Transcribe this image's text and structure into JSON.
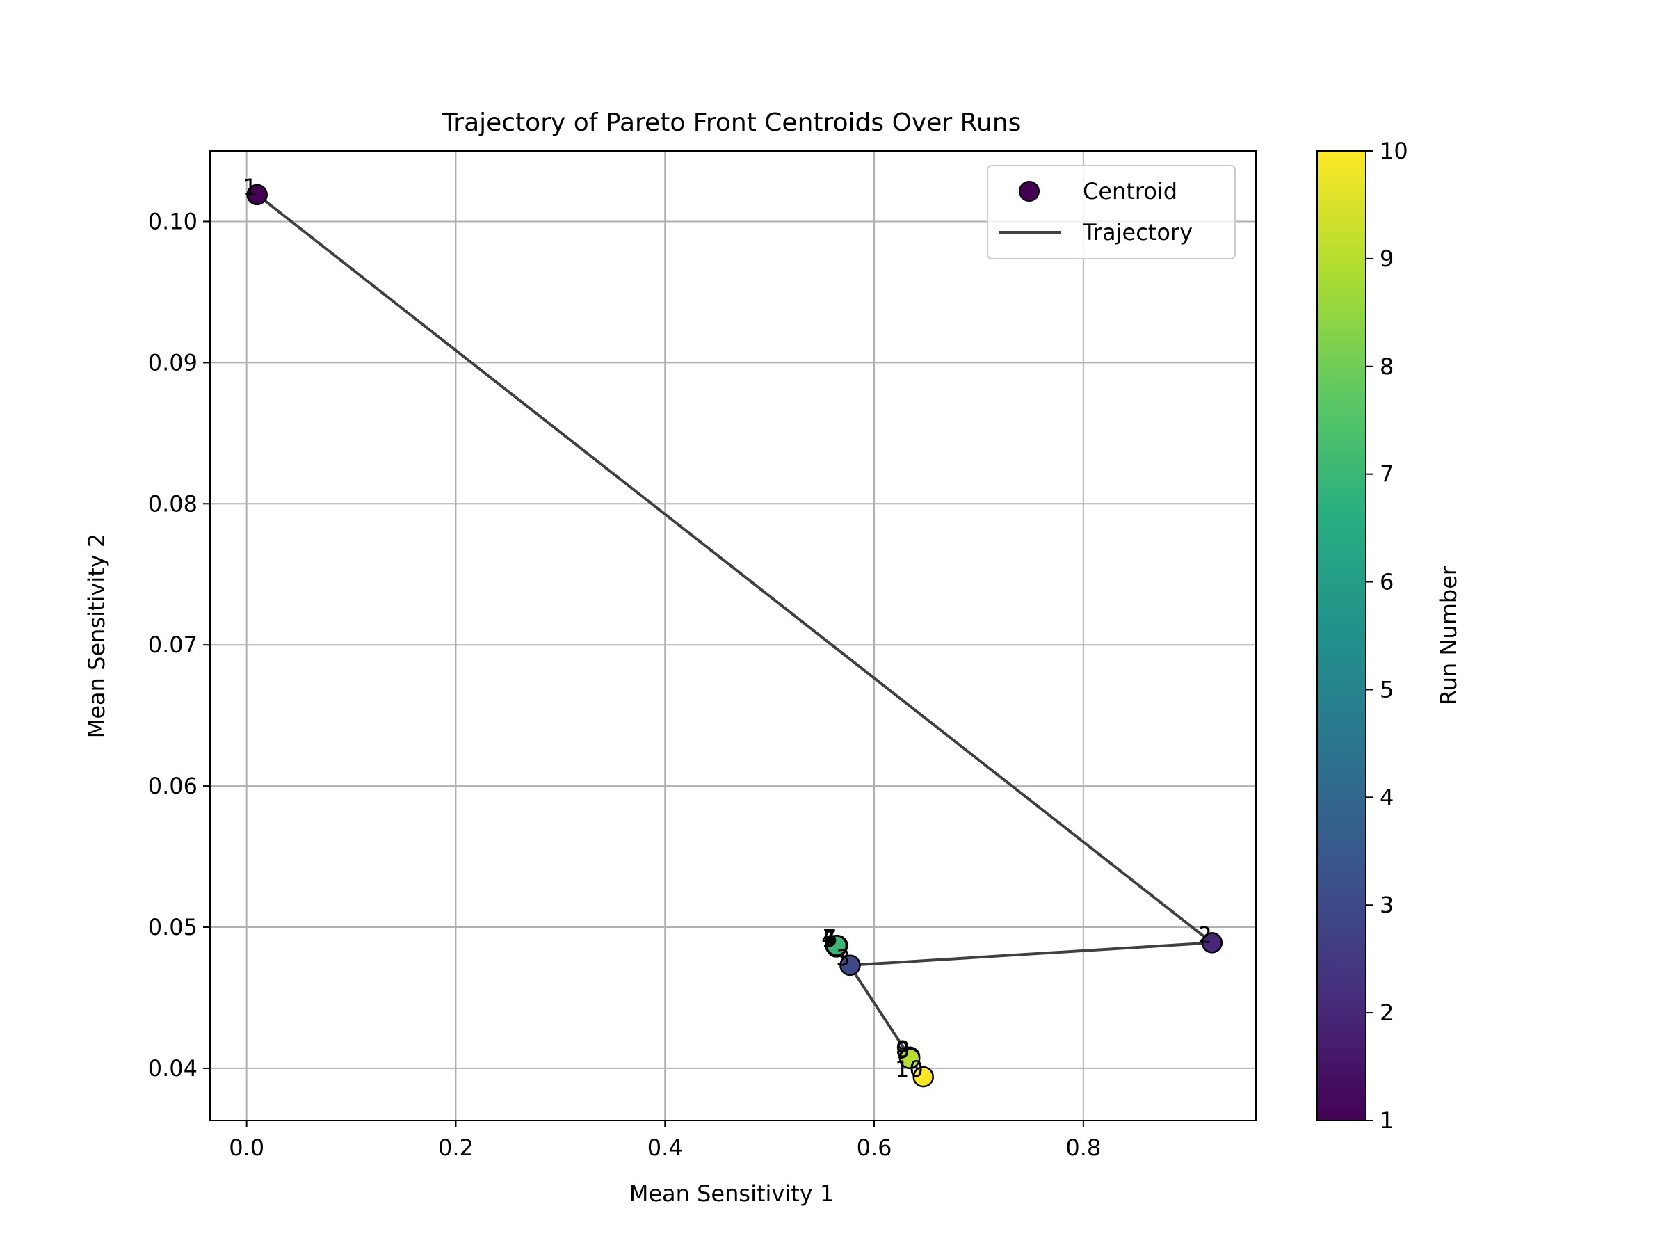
{
  "chart_data": {
    "type": "scatter",
    "title": "Trajectory of Pareto Front Centroids Over Runs",
    "xlabel": "Mean Sensitivity 1",
    "ylabel": "Mean Sensitivity 2",
    "xlim": [
      -0.035,
      0.965
    ],
    "ylim": [
      0.0363,
      0.105
    ],
    "xticks": [
      0.0,
      0.2,
      0.4,
      0.6,
      0.8
    ],
    "xtick_labels": [
      "0.0",
      "0.2",
      "0.4",
      "0.6",
      "0.8"
    ],
    "yticks": [
      0.04,
      0.05,
      0.06,
      0.07,
      0.08,
      0.09,
      0.1
    ],
    "ytick_labels": [
      "0.04",
      "0.05",
      "0.06",
      "0.07",
      "0.08",
      "0.09",
      "0.10"
    ],
    "grid": true,
    "legend": {
      "placement": "top-right",
      "entries": [
        {
          "label": "Centroid",
          "kind": "marker"
        },
        {
          "label": "Trajectory",
          "kind": "line"
        }
      ]
    },
    "colorbar": {
      "label": "Run Number",
      "colormap": "viridis",
      "range": [
        1,
        10
      ],
      "ticks": [
        1,
        2,
        3,
        4,
        5,
        6,
        7,
        8,
        9,
        10
      ],
      "tick_labels": [
        "1",
        "2",
        "3",
        "4",
        "5",
        "6",
        "7",
        "8",
        "9",
        "10"
      ]
    },
    "points": [
      {
        "run": 1,
        "label": "1",
        "x": 0.01,
        "y": 0.1019
      },
      {
        "run": 2,
        "label": "2",
        "x": 0.923,
        "y": 0.0489
      },
      {
        "run": 3,
        "label": "3",
        "x": 0.577,
        "y": 0.0473
      },
      {
        "run": 4,
        "label": "4",
        "x": 0.563,
        "y": 0.0487
      },
      {
        "run": 5,
        "label": "5",
        "x": 0.564,
        "y": 0.0486
      },
      {
        "run": 6,
        "label": "6",
        "x": 0.565,
        "y": 0.0487
      },
      {
        "run": 7,
        "label": "7",
        "x": 0.564,
        "y": 0.0487
      },
      {
        "run": 8,
        "label": "8",
        "x": 0.634,
        "y": 0.0408
      },
      {
        "run": 9,
        "label": "9",
        "x": 0.634,
        "y": 0.0407
      },
      {
        "run": 10,
        "label": "10",
        "x": 0.647,
        "y": 0.0394
      }
    ],
    "colors": {
      "trajectory": "#404040",
      "marker_edge": "#000000",
      "grid": "#b0b0b0",
      "legend_border": "#cccccc"
    }
  }
}
